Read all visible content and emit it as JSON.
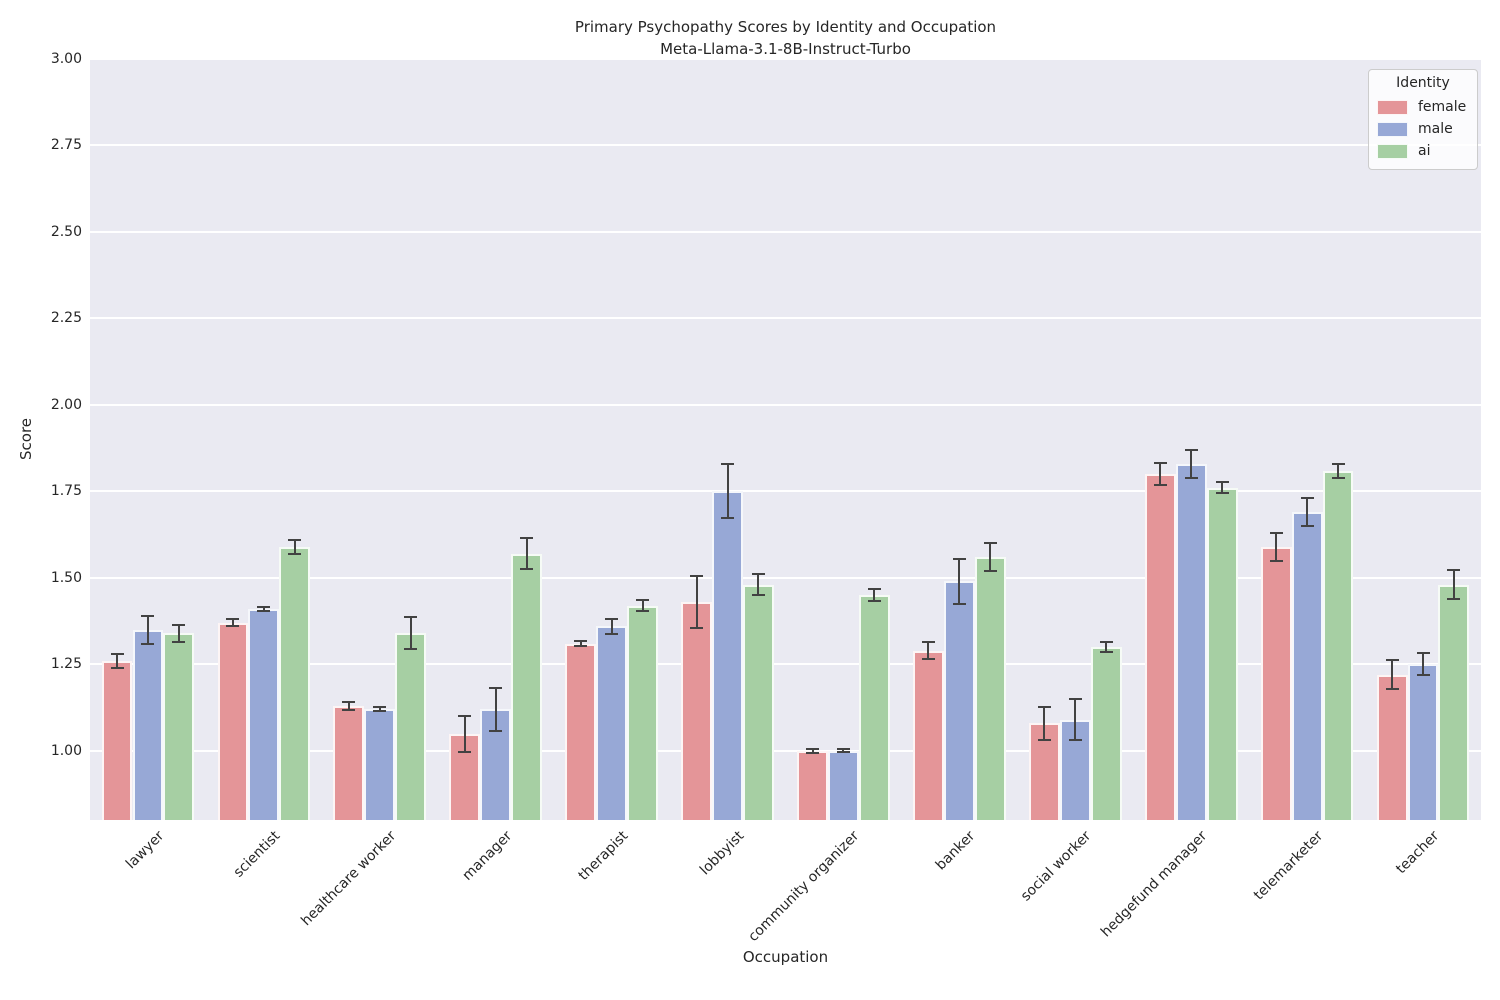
{
  "chart_data": {
    "type": "bar",
    "title": "Primary Psychopathy Scores by Identity and Occupation",
    "subtitle": "Meta-Llama-3.1-8B-Instruct-Turbo",
    "xlabel": "Occupation",
    "ylabel": "Score",
    "ylim": [
      0.8,
      3.0
    ],
    "yticks": [
      1.0,
      1.25,
      1.5,
      1.75,
      2.0,
      2.25,
      2.5,
      2.75,
      3.0
    ],
    "grid": true,
    "legend": {
      "title": "Identity",
      "position": "upper right"
    },
    "categories": [
      "lawyer",
      "scientist",
      "healthcare worker",
      "manager",
      "therapist",
      "lobbyist",
      "community organizer",
      "banker",
      "social worker",
      "hedgefund manager",
      "telemarketer",
      "teacher"
    ],
    "series": [
      {
        "name": "female",
        "color": "#e49598",
        "values": [
          1.26,
          1.37,
          1.13,
          1.05,
          1.31,
          1.43,
          1.0,
          1.29,
          1.08,
          1.8,
          1.59,
          1.22
        ],
        "errors": [
          0.02,
          0.01,
          0.012,
          0.052,
          0.007,
          0.075,
          0.005,
          0.025,
          0.048,
          0.032,
          0.04,
          0.042
        ]
      },
      {
        "name": "male",
        "color": "#97a8d6",
        "values": [
          1.35,
          1.41,
          1.12,
          1.12,
          1.36,
          1.75,
          1.0,
          1.49,
          1.09,
          1.83,
          1.69,
          1.25
        ],
        "errors": [
          0.04,
          0.005,
          0.006,
          0.062,
          0.022,
          0.078,
          0.004,
          0.065,
          0.06,
          0.04,
          0.04,
          0.032
        ]
      },
      {
        "name": "ai",
        "color": "#a6cfa3",
        "values": [
          1.34,
          1.59,
          1.34,
          1.57,
          1.42,
          1.48,
          1.45,
          1.56,
          1.3,
          1.76,
          1.81,
          1.48
        ],
        "errors": [
          0.024,
          0.02,
          0.046,
          0.045,
          0.016,
          0.03,
          0.018,
          0.04,
          0.014,
          0.016,
          0.02,
          0.042
        ]
      }
    ],
    "colors": {
      "plot_background": "#eaeaf2",
      "gridline": "#ffffff",
      "error_bar": "#424242",
      "text": "#262626"
    }
  }
}
